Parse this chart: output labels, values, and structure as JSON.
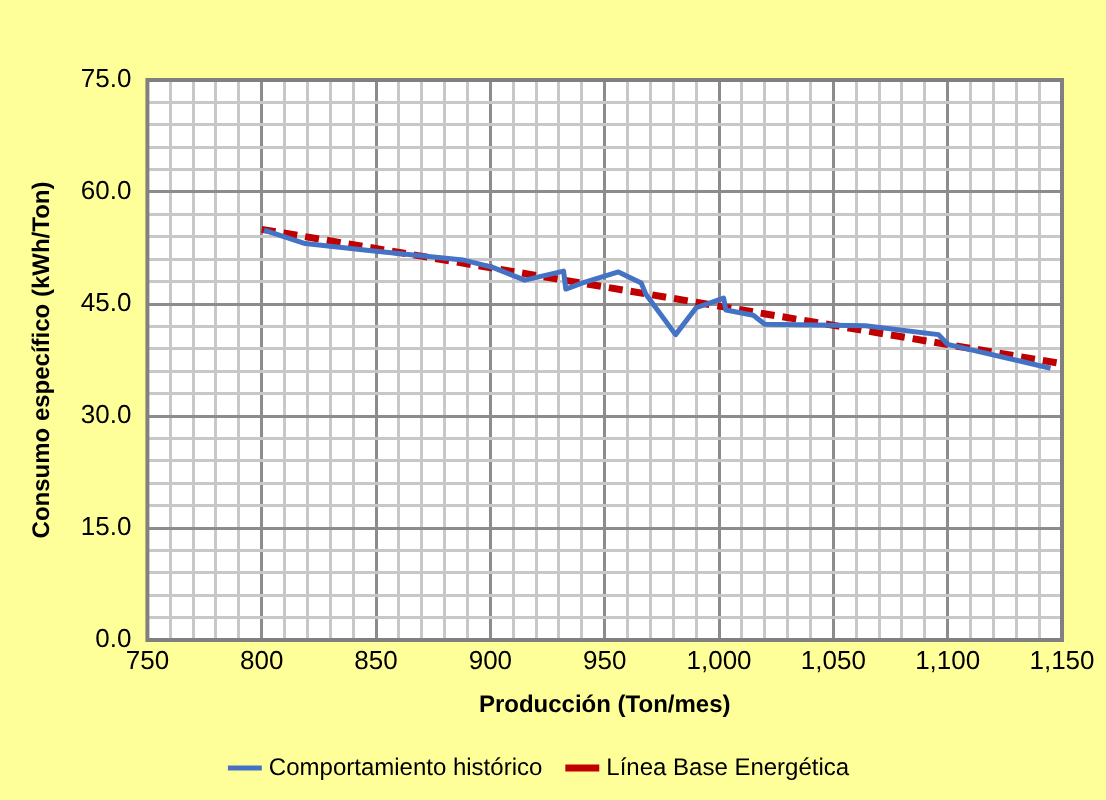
{
  "chart_data": {
    "type": "line",
    "xlabel": "Producción (Ton/mes)",
    "ylabel": "Consumo específico (kWh/Ton)",
    "xlim": [
      750,
      1150
    ],
    "xticks": [
      {
        "value": 750,
        "label": "750"
      },
      {
        "value": 760,
        "label": null
      },
      {
        "value": 770,
        "label": null
      },
      {
        "value": 780,
        "label": null
      },
      {
        "value": 790,
        "label": null
      },
      {
        "value": 800,
        "label": "800"
      },
      {
        "value": 810,
        "label": null
      },
      {
        "value": 820,
        "label": null
      },
      {
        "value": 830,
        "label": null
      },
      {
        "value": 840,
        "label": null
      },
      {
        "value": 850,
        "label": "850"
      },
      {
        "value": 860,
        "label": null
      },
      {
        "value": 870,
        "label": null
      },
      {
        "value": 880,
        "label": null
      },
      {
        "value": 890,
        "label": null
      },
      {
        "value": 900,
        "label": "900"
      },
      {
        "value": 910,
        "label": null
      },
      {
        "value": 920,
        "label": null
      },
      {
        "value": 930,
        "label": null
      },
      {
        "value": 940,
        "label": null
      },
      {
        "value": 950,
        "label": "950"
      },
      {
        "value": 960,
        "label": null
      },
      {
        "value": 970,
        "label": null
      },
      {
        "value": 980,
        "label": null
      },
      {
        "value": 990,
        "label": null
      },
      {
        "value": 1000,
        "label": "1,000"
      },
      {
        "value": 1010,
        "label": null
      },
      {
        "value": 1020,
        "label": null
      },
      {
        "value": 1030,
        "label": null
      },
      {
        "value": 1040,
        "label": null
      },
      {
        "value": 1050,
        "label": "1,050"
      },
      {
        "value": 1060,
        "label": null
      },
      {
        "value": 1070,
        "label": null
      },
      {
        "value": 1080,
        "label": null
      },
      {
        "value": 1090,
        "label": null
      },
      {
        "value": 1100,
        "label": "1,100"
      },
      {
        "value": 1110,
        "label": null
      },
      {
        "value": 1120,
        "label": null
      },
      {
        "value": 1130,
        "label": null
      },
      {
        "value": 1140,
        "label": null
      },
      {
        "value": 1150,
        "label": "1,150"
      }
    ],
    "ylim": [
      0,
      75
    ],
    "yticks": [
      {
        "value": 0,
        "label": "0.0"
      },
      {
        "value": 3,
        "label": null
      },
      {
        "value": 6,
        "label": null
      },
      {
        "value": 9,
        "label": null
      },
      {
        "value": 12,
        "label": null
      },
      {
        "value": 15,
        "label": "15.0"
      },
      {
        "value": 18,
        "label": null
      },
      {
        "value": 21,
        "label": null
      },
      {
        "value": 24,
        "label": null
      },
      {
        "value": 27,
        "label": null
      },
      {
        "value": 30,
        "label": "30.0"
      },
      {
        "value": 33,
        "label": null
      },
      {
        "value": 36,
        "label": null
      },
      {
        "value": 39,
        "label": null
      },
      {
        "value": 42,
        "label": null
      },
      {
        "value": 45,
        "label": "45.0"
      },
      {
        "value": 48,
        "label": null
      },
      {
        "value": 51,
        "label": null
      },
      {
        "value": 54,
        "label": null
      },
      {
        "value": 57,
        "label": null
      },
      {
        "value": 60,
        "label": "60.0"
      },
      {
        "value": 63,
        "label": null
      },
      {
        "value": 66,
        "label": null
      },
      {
        "value": 69,
        "label": null
      },
      {
        "value": 72,
        "label": null
      },
      {
        "value": 75,
        "label": "75.0"
      }
    ],
    "grid": true,
    "legend": "bottom",
    "marker": "none",
    "series": [
      {
        "name": "Comportamiento histórico",
        "color": "#4472c4",
        "line_style": "solid",
        "x": [
          801,
          819,
          849,
          888,
          901,
          915,
          932,
          933,
          940,
          956,
          966,
          968,
          981,
          990,
          1002,
          1003,
          1015,
          1020,
          1064,
          1096,
          1100,
          1145
        ],
        "values": [
          54.9,
          53.1,
          52.1,
          50.9,
          49.9,
          48.2,
          49.4,
          47.0,
          47.8,
          49.3,
          47.8,
          46.3,
          40.9,
          44.5,
          45.8,
          44.2,
          43.5,
          42.3,
          42.1,
          40.9,
          39.6,
          36.4
        ]
      },
      {
        "name": "Línea Base Energética",
        "color": "#c00000",
        "line_style": "dashed",
        "x": [
          800,
          1150
        ],
        "values": [
          55.0,
          37.0
        ]
      }
    ]
  }
}
